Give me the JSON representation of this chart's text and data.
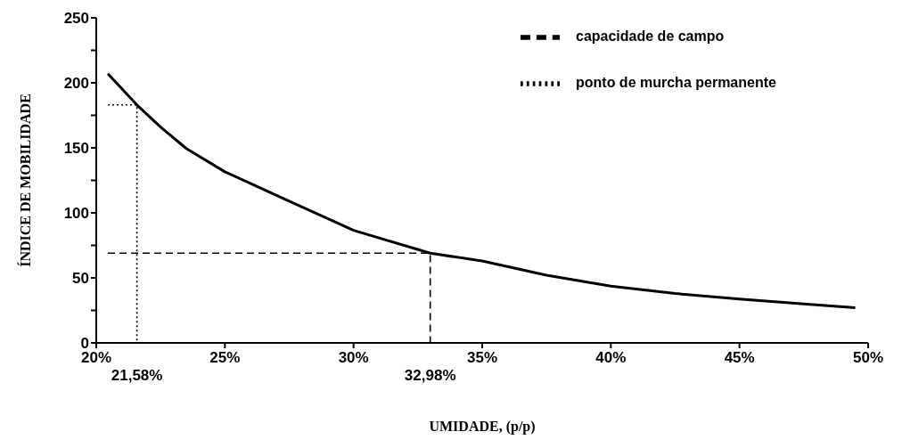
{
  "chart_data": {
    "type": "line",
    "xlabel": "UMIDADE, (p/p)",
    "ylabel": "ÍNDICE DE MOBILIDADE",
    "xlim": [
      20,
      50
    ],
    "xticks": [
      {
        "value": 20,
        "label": "20%"
      },
      {
        "value": 25,
        "label": "25%"
      },
      {
        "value": 30,
        "label": "30%"
      },
      {
        "value": 35,
        "label": "35%"
      },
      {
        "value": 40,
        "label": "40%"
      },
      {
        "value": 45,
        "label": "45%"
      },
      {
        "value": 50,
        "label": "50%"
      }
    ],
    "ylim": [
      0,
      250
    ],
    "yticks": [
      0,
      {
        "value": 25,
        "label": null
      },
      50,
      {
        "value": 75,
        "label": null
      },
      100,
      {
        "value": 125,
        "label": null
      },
      150,
      {
        "value": 175,
        "label": null
      },
      200,
      {
        "value": 225,
        "label": null
      },
      250
    ],
    "series": [
      {
        "x": [
          20.45,
          21.58,
          22.5,
          23.5,
          25,
          27.5,
          30,
          32.98,
          35,
          37.5,
          40,
          42.5,
          45,
          47.5,
          49.5
        ],
        "values": [
          207,
          183,
          166,
          149.5,
          131.6,
          109,
          86.6,
          69,
          63,
          52,
          43.6,
          38,
          33.7,
          30,
          27
        ],
        "color": "#000000",
        "line_style": "solid"
      },
      {
        "name": "capacidade de campo",
        "x": [
          20.45,
          32.98,
          32.98
        ],
        "values": [
          69,
          69,
          0
        ],
        "color": "#000000",
        "line_style": "dashed"
      },
      {
        "name": "ponto de murcha permanente",
        "x": [
          20.45,
          21.58,
          21.58
        ],
        "values": [
          183,
          183,
          0
        ],
        "color": "#000000",
        "line_style": "dotted"
      }
    ],
    "annotations": [
      {
        "text": "21,58%",
        "x": 21.58,
        "y": 0
      },
      {
        "text": "32,98%",
        "x": 32.98,
        "y": 0
      }
    ],
    "legend": "top right",
    "grid": false,
    "marker": "none"
  }
}
